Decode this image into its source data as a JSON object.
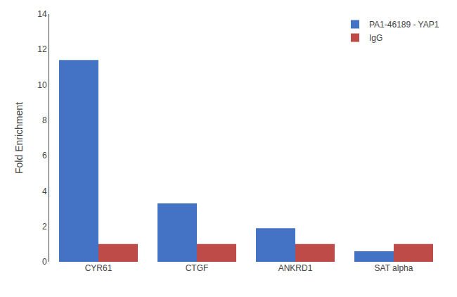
{
  "chart_data": {
    "type": "bar",
    "categories": [
      "CYR61",
      "CTGF",
      "ANKRD1",
      "SAT alpha"
    ],
    "series": [
      {
        "name": "PA1-46189 - YAP1",
        "color": "#4472C4",
        "values": [
          11.4,
          3.3,
          1.9,
          0.6
        ]
      },
      {
        "name": "IgG",
        "color": "#BE4B48",
        "values": [
          1.0,
          1.0,
          1.0,
          1.0
        ]
      }
    ],
    "ylabel": "Fold Enrichment",
    "ylim": [
      0,
      14
    ],
    "yticks": [
      0,
      2,
      4,
      6,
      8,
      10,
      12,
      14
    ],
    "grid": false,
    "legend": "upper right"
  }
}
